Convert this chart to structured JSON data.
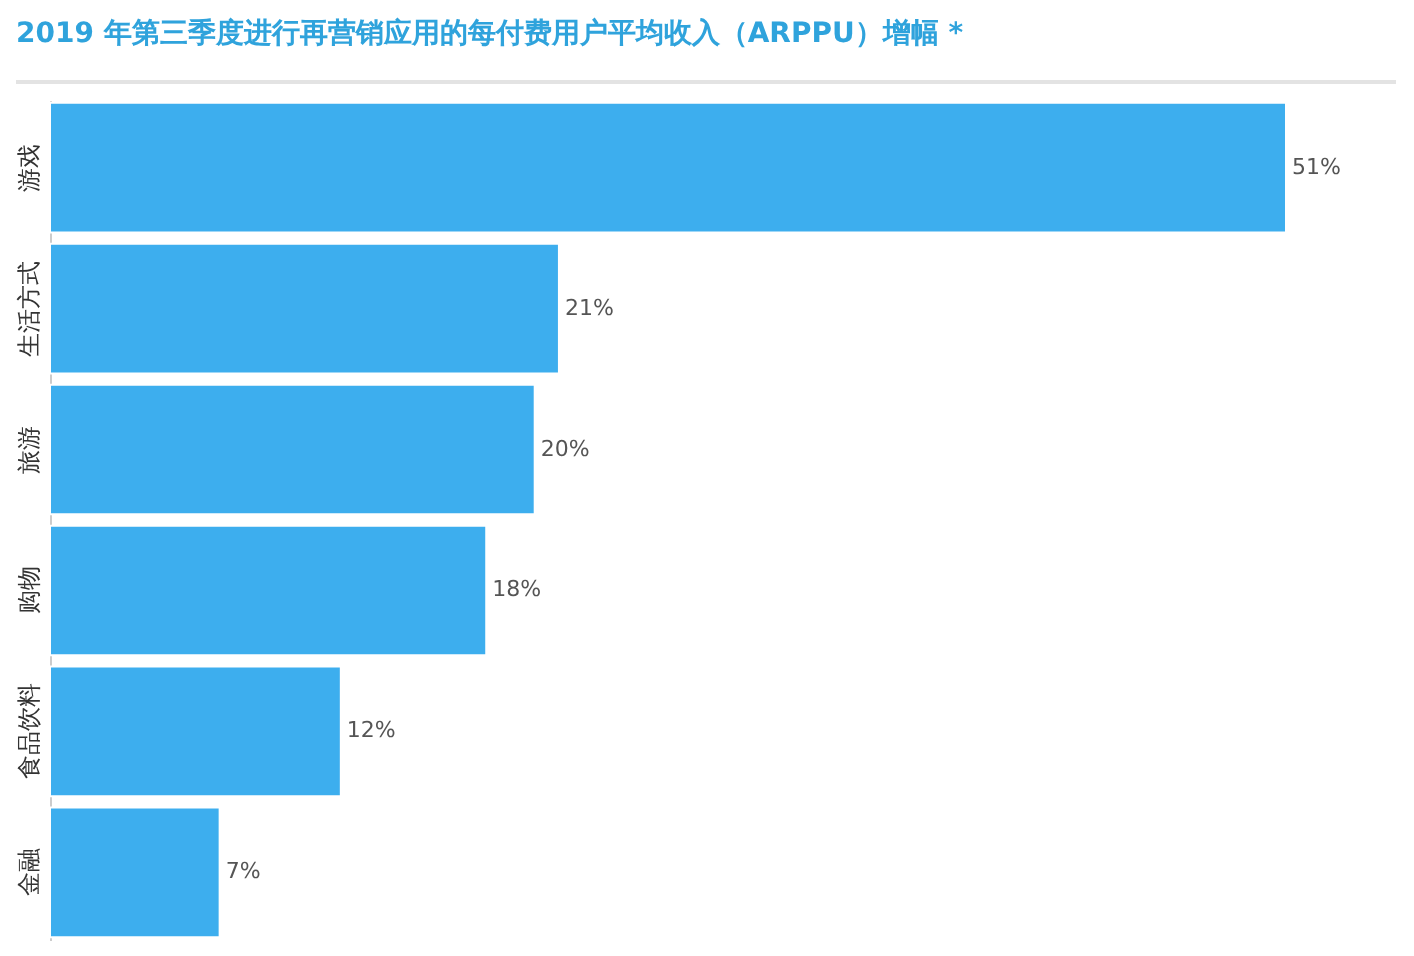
{
  "chart_data": {
    "type": "bar",
    "orientation": "horizontal",
    "title": "2019 年第三季度进行再营销应用的每付费用户平均收入（ARPPU）增幅 *",
    "categories": [
      "游戏",
      "生活方式",
      "旅游",
      "购物",
      "食品饮料",
      "金融"
    ],
    "values": [
      51,
      21,
      20,
      18,
      12,
      7
    ],
    "value_labels": [
      "51%",
      "21%",
      "20%",
      "18%",
      "12%",
      "7%"
    ],
    "color": "#3daeee"
  }
}
